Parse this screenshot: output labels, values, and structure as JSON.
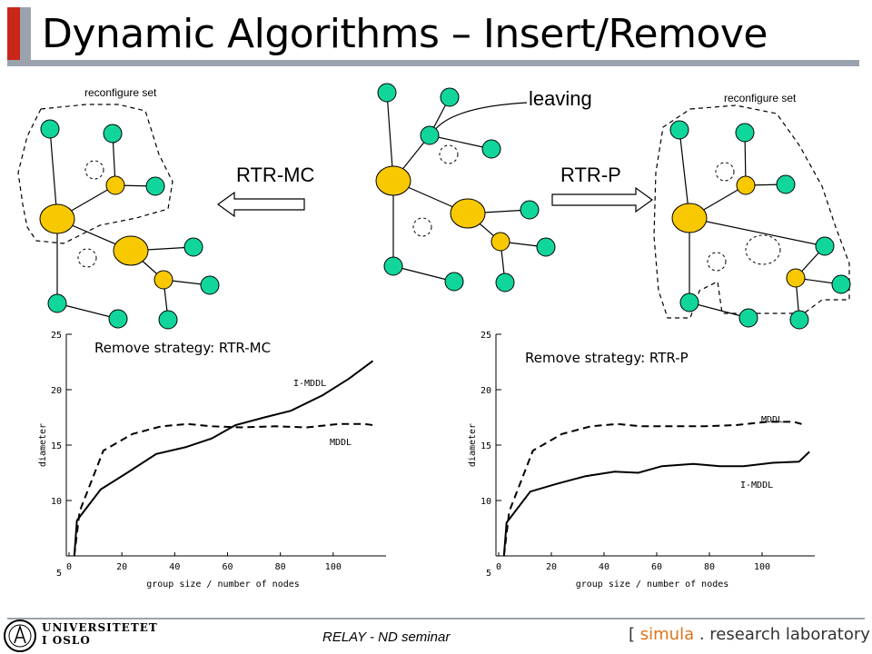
{
  "slide": {
    "title": "Dynamic Algorithms – Insert/Remove",
    "footer_center": "RELAY - ND seminar",
    "university_line1": "UNIVERSITETET",
    "university_line2": "I OSLO",
    "lab_bracket_open": "[",
    "lab_brand": "simula",
    "lab_rest": ". research laboratory",
    "lab_bracket_close": "]"
  },
  "diagram": {
    "left_label": "reconfigure set",
    "right_label": "reconfigure set",
    "leaving_label": "leaving",
    "arrow_left_label": "RTR-MC",
    "arrow_right_label": "RTR-P",
    "colors": {
      "leaf": "#11d69b",
      "core": "#f8c800",
      "bar": "#9aa3ad",
      "bar_dark": "#cf2a1e"
    }
  },
  "chart_data": [
    {
      "type": "line",
      "title": "Remove strategy: RTR-MC",
      "xlabel": "group size / number of nodes",
      "ylabel": "diameter",
      "xticks": [
        0,
        20,
        40,
        60,
        80,
        100
      ],
      "yticks": [
        5,
        10,
        15,
        20,
        25
      ],
      "xlim": [
        0,
        120
      ],
      "ylim": [
        5,
        25
      ],
      "series": [
        {
          "name": "I-MDDL",
          "style": "solid",
          "x": [
            2,
            3,
            12,
            22,
            33,
            44,
            54,
            63,
            74,
            84,
            96,
            106,
            115
          ],
          "y": [
            5,
            8.2,
            11,
            12.5,
            14.2,
            14.8,
            15.6,
            16.8,
            17.5,
            18.1,
            19.5,
            21,
            22.6
          ]
        },
        {
          "name": "MDDL",
          "style": "dashed",
          "x": [
            2,
            4,
            13,
            24,
            35,
            45,
            54,
            65,
            78,
            90,
            102,
            112,
            115
          ],
          "y": [
            5,
            9,
            14.5,
            16,
            16.7,
            16.9,
            16.7,
            16.6,
            16.7,
            16.6,
            16.9,
            16.9,
            16.8
          ]
        }
      ],
      "annotations": [
        "I-MDDL",
        "MDDL"
      ]
    },
    {
      "type": "line",
      "title": "Remove strategy: RTR-P",
      "xlabel": "group size / number of nodes",
      "ylabel": "diameter",
      "xticks": [
        0,
        20,
        40,
        60,
        80,
        100
      ],
      "yticks": [
        5,
        10,
        15,
        20,
        25
      ],
      "xlim": [
        0,
        120
      ],
      "ylim": [
        5,
        25
      ],
      "series": [
        {
          "name": "MDDL",
          "style": "dashed",
          "x": [
            2,
            4,
            13,
            24,
            35,
            45,
            54,
            65,
            78,
            90,
            102,
            112,
            115
          ],
          "y": [
            5,
            9,
            14.5,
            16,
            16.7,
            16.9,
            16.7,
            16.7,
            16.7,
            16.8,
            17.1,
            17.1,
            16.9
          ]
        },
        {
          "name": "I-MDDL",
          "style": "solid",
          "x": [
            2,
            3,
            12,
            22,
            33,
            44,
            53,
            62,
            74,
            84,
            93,
            104,
            114,
            118
          ],
          "y": [
            5,
            8,
            10.8,
            11.5,
            12.2,
            12.6,
            12.5,
            13.1,
            13.3,
            13.1,
            13.1,
            13.4,
            13.5,
            14.4
          ]
        }
      ],
      "annotations": [
        "MDDL",
        "I-MDDL"
      ]
    }
  ]
}
